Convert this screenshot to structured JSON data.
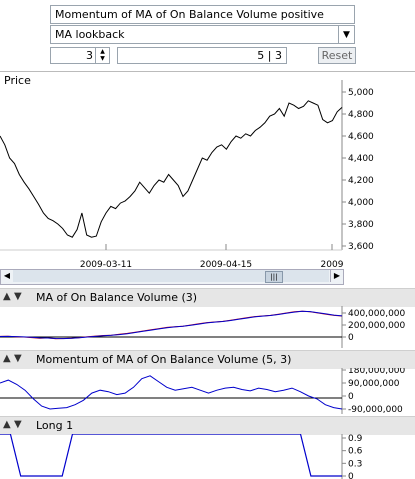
{
  "controls": {
    "indicator_title": "Momentum of MA of On Balance Volume positive",
    "select_value": "MA lookback",
    "spinner_value": "3",
    "params_value": "5 | 3",
    "reset_label": "Reset"
  },
  "price_panel": {
    "label": "Price",
    "y_ticks": [
      "5,000",
      "4,800",
      "4,600",
      "4,400",
      "4,200",
      "4,000",
      "3,800",
      "3,600"
    ],
    "x_ticks": [
      "2009-03-11",
      "2009-04-15",
      "2009"
    ]
  },
  "obv_panel": {
    "title": "MA of On Balance Volume (3)",
    "y_ticks": [
      "400,000,000",
      "200,000,000",
      "0"
    ]
  },
  "mom_panel": {
    "title": "Momentum of MA of On Balance Volume (5, 3)",
    "y_ticks": [
      "180,000,000",
      "90,000,000",
      "0",
      "-90,000,000"
    ]
  },
  "long_panel": {
    "title": "Long 1",
    "y_ticks": [
      "0.9",
      "0.6",
      "0.3",
      "0"
    ]
  },
  "icons": {
    "collapse": "up-triangle-icon",
    "expand": "down-triangle-icon"
  },
  "colors": {
    "price_line": "#000000",
    "blue_line": "#0000cc",
    "red_line": "#cc0000"
  },
  "chart_data": [
    {
      "type": "line",
      "title": "Price",
      "ylim": [
        3600,
        5000
      ],
      "x_ticks": [
        "2009-03-11",
        "2009-04-15",
        "2009"
      ],
      "values": [
        4600,
        4520,
        4400,
        4350,
        4250,
        4180,
        4120,
        4050,
        3980,
        3900,
        3850,
        3830,
        3800,
        3760,
        3700,
        3680,
        3750,
        3900,
        3700,
        3680,
        3690,
        3820,
        3900,
        3960,
        3940,
        3990,
        4010,
        4050,
        4100,
        4180,
        4130,
        4080,
        4150,
        4200,
        4180,
        4250,
        4200,
        4150,
        4050,
        4100,
        4200,
        4300,
        4400,
        4380,
        4450,
        4500,
        4520,
        4480,
        4550,
        4600,
        4580,
        4620,
        4600,
        4650,
        4680,
        4720,
        4780,
        4800,
        4850,
        4780,
        4900,
        4880,
        4850,
        4870,
        4920,
        4900,
        4880,
        4750,
        4720,
        4740,
        4820,
        4860
      ]
    },
    {
      "type": "line",
      "title": "MA of On Balance Volume (3)",
      "ylim": [
        -50000000,
        450000000
      ],
      "series": [
        {
          "values": [
            10,
            12,
            5,
            0,
            -10,
            -20,
            -15,
            -30,
            -25,
            -20,
            -10,
            5,
            15,
            25,
            30,
            45,
            60,
            80,
            100,
            120,
            140,
            160,
            170,
            180,
            200,
            220,
            240,
            250,
            260,
            280,
            300,
            320,
            340,
            350,
            360,
            380,
            400,
            420,
            430,
            420,
            400,
            380,
            360,
            350
          ]
        },
        {
          "values": [
            8,
            10,
            7,
            2,
            -5,
            -15,
            -17,
            -25,
            -27,
            -22,
            -14,
            0,
            10,
            20,
            28,
            40,
            55,
            75,
            95,
            115,
            135,
            155,
            168,
            178,
            195,
            215,
            235,
            248,
            258,
            275,
            295,
            315,
            335,
            348,
            358,
            375,
            395,
            415,
            428,
            424,
            405,
            385,
            365,
            352
          ]
        }
      ]
    },
    {
      "type": "line",
      "title": "Momentum of MA of On Balance Volume (5, 3)",
      "ylim": [
        -100000000,
        200000000
      ],
      "values": [
        90,
        110,
        80,
        40,
        -20,
        -70,
        -90,
        -85,
        -80,
        -60,
        -30,
        20,
        40,
        30,
        10,
        20,
        60,
        120,
        140,
        100,
        60,
        40,
        50,
        60,
        40,
        20,
        40,
        55,
        60,
        45,
        35,
        55,
        45,
        30,
        40,
        55,
        30,
        0,
        -20,
        -60,
        -80,
        -90
      ]
    },
    {
      "type": "line",
      "title": "Long 1",
      "ylim": [
        0,
        1
      ],
      "values": [
        1,
        1,
        0,
        0,
        0,
        0,
        0,
        1,
        1,
        1,
        1,
        1,
        1,
        1,
        1,
        1,
        1,
        1,
        1,
        1,
        1,
        1,
        1,
        1,
        1,
        1,
        1,
        1,
        1,
        1,
        0,
        0,
        0,
        0
      ]
    }
  ]
}
